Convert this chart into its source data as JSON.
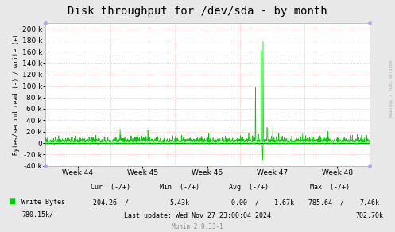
{
  "title": "Disk throughput for /dev/sda - by month",
  "ylabel": "Bytes/second read (-) / write (+)",
  "background_color": "#e8e8e8",
  "plot_background": "#ffffff",
  "grid_color": "#ff9999",
  "line_color_write": "#00cc00",
  "zero_line_color": "#000000",
  "ylim": [
    -40000,
    210000
  ],
  "yticks": [
    -40000,
    -20000,
    0,
    20000,
    40000,
    60000,
    80000,
    100000,
    120000,
    140000,
    160000,
    180000,
    200000
  ],
  "x_weeks": [
    "Week 44",
    "Week 45",
    "Week 46",
    "Week 47",
    "Week 48"
  ],
  "legend_label": "Write Bytes",
  "legend_color": "#00cc00",
  "last_update": "Last update: Wed Nov 27 23:00:04 2024",
  "munin_version": "Munin 2.0.33-1",
  "rrdtool_label": "RRDTOOL / TOBI OETIKER",
  "title_fontsize": 10,
  "tick_fontsize": 6.5,
  "stats_fontsize": 6.0
}
